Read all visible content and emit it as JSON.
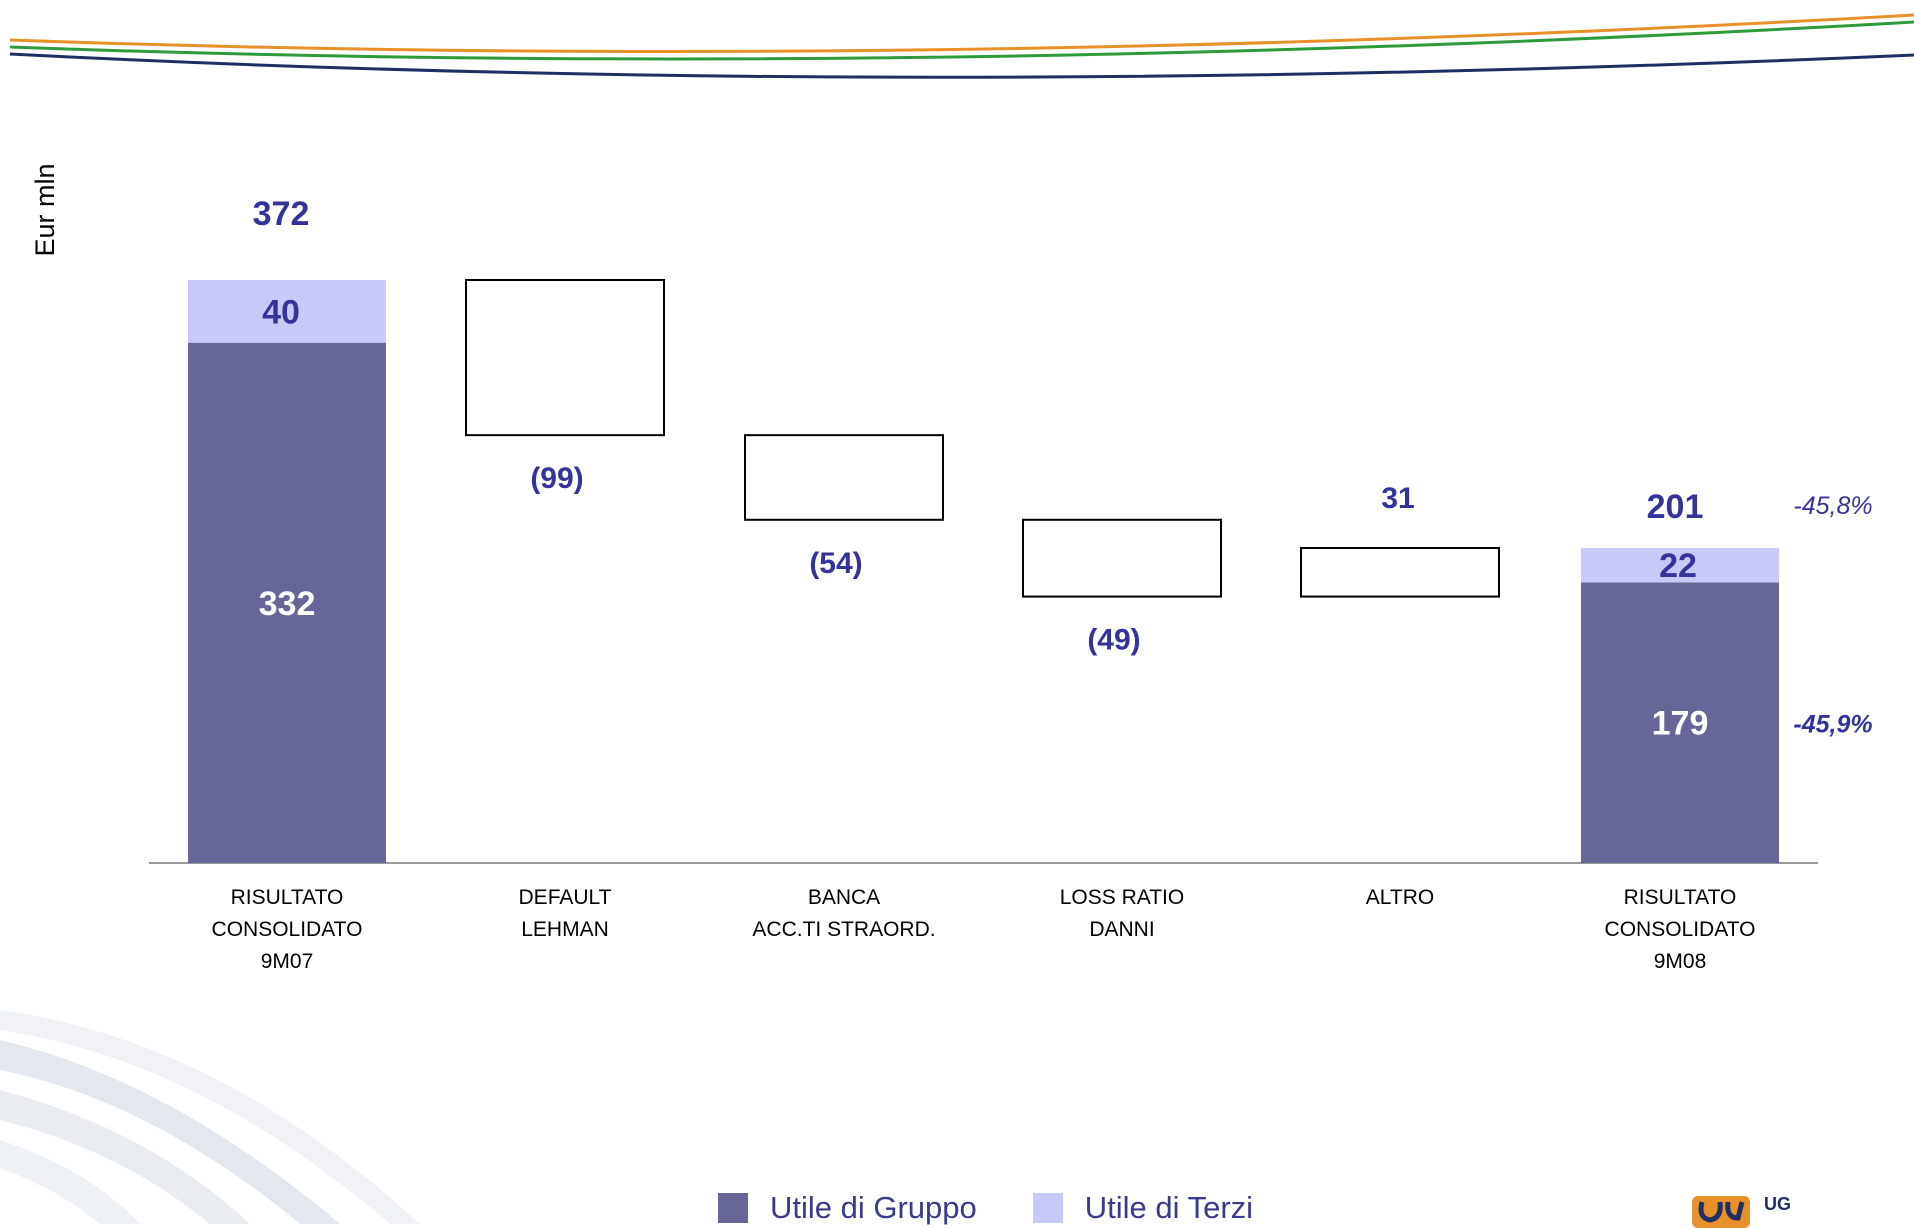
{
  "chart_data": {
    "type": "bar",
    "subtype": "waterfall",
    "ylabel": "Eur mln",
    "categories": [
      [
        "RISULTATO",
        "CONSOLIDATO",
        "9M07"
      ],
      [
        "DEFAULT",
        "LEHMAN"
      ],
      [
        "BANCA",
        "ACC.TI STRAORD."
      ],
      [
        "LOSS RATIO",
        "DANNI"
      ],
      [
        "ALTRO"
      ],
      [
        "RISULTATO",
        "CONSOLIDATO",
        "9M08"
      ]
    ],
    "start_bar": {
      "total": 372,
      "total_label": "372",
      "gruppo": 332,
      "gruppo_label": "332",
      "terzi": 40,
      "terzi_label": "40"
    },
    "steps": [
      {
        "value": -99,
        "label": "(99)"
      },
      {
        "value": -54,
        "label": "(54)"
      },
      {
        "value": -49,
        "label": "(49)"
      },
      {
        "value": 31,
        "label": "31"
      }
    ],
    "end_bar": {
      "total": 201,
      "total_label": "201",
      "gruppo": 179,
      "gruppo_label": "179",
      "terzi": 22,
      "terzi_label": "22"
    },
    "annotations": [
      {
        "text": "-45,8%",
        "target": "end_total"
      },
      {
        "text": "-45,9%",
        "target": "end_gruppo"
      }
    ],
    "series": [
      {
        "name": "Utile di Gruppo",
        "color": "#676699"
      },
      {
        "name": "Utile di Terzi",
        "color": "#c9c9f9"
      }
    ],
    "ylim": [
      0,
      372
    ],
    "grid": false,
    "legend_position": "bottom-center"
  },
  "colors": {
    "gruppo": "#676699",
    "terzi": "#c9c9f9",
    "label": "#333399",
    "accent_orange": "#e8902a",
    "accent_green": "#2e9a3c",
    "accent_navy": "#1f2f62"
  },
  "logo": {
    "text": "UG"
  }
}
